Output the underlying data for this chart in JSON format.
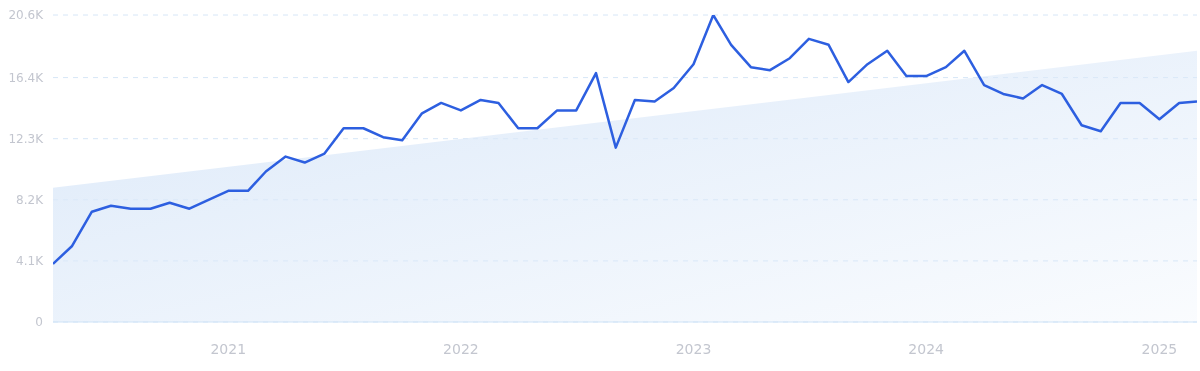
{
  "chart_data": {
    "type": "line",
    "x": [
      "2020-04",
      "2020-05",
      "2020-06",
      "2020-07",
      "2020-08",
      "2020-09",
      "2020-10",
      "2020-11",
      "2020-12",
      "2021-01",
      "2021-02",
      "2021-03",
      "2021-04",
      "2021-05",
      "2021-06",
      "2021-07",
      "2021-08",
      "2021-09",
      "2021-10",
      "2021-11",
      "2021-12",
      "2022-01",
      "2022-02",
      "2022-03",
      "2022-04",
      "2022-05",
      "2022-06",
      "2022-07",
      "2022-08",
      "2022-09",
      "2022-10",
      "2022-11",
      "2022-12",
      "2023-01",
      "2023-02",
      "2023-03",
      "2023-04",
      "2023-05",
      "2023-06",
      "2023-07",
      "2023-08",
      "2023-09",
      "2023-10",
      "2023-11",
      "2023-12",
      "2024-01",
      "2024-02",
      "2024-03",
      "2024-04",
      "2024-05",
      "2024-06",
      "2024-07",
      "2024-08",
      "2024-09",
      "2024-10",
      "2024-11",
      "2024-12",
      "2025-01",
      "2025-02",
      "2025-03"
    ],
    "series": [
      {
        "type": "area",
        "x": [
          "2020-04",
          "2025-03"
        ],
        "values": [
          9000,
          18200
        ],
        "color": "#dce9f9"
      },
      {
        "color": "#2d5fe0",
        "values": [
          3900,
          5100,
          7400,
          7800,
          7600,
          7600,
          8000,
          7600,
          8200,
          8800,
          8800,
          10100,
          11100,
          10700,
          11300,
          13000,
          13000,
          12400,
          12200,
          14000,
          14700,
          14200,
          14900,
          14700,
          13000,
          13000,
          14200,
          14200,
          16700,
          11700,
          14900,
          14800,
          15700,
          17300,
          20600,
          18600,
          17100,
          16900,
          17700,
          19000,
          18600,
          16100,
          17300,
          18200,
          16500,
          16500,
          17100,
          18200,
          15900,
          15300,
          15000,
          15900,
          15300,
          13200,
          12800,
          14700,
          14700,
          13600,
          14700,
          14800
        ]
      }
    ],
    "xlim": [
      "2020-04",
      "2025-03"
    ],
    "xticks": [
      {
        "value": "2021-01",
        "label": "2021"
      },
      {
        "value": "2022-01",
        "label": "2022"
      },
      {
        "value": "2023-01",
        "label": "2023"
      },
      {
        "value": "2024-01",
        "label": "2024"
      },
      {
        "value": "2025-01",
        "label": "2025"
      }
    ],
    "ylim": [
      0,
      20600
    ],
    "yticks": [
      0,
      {
        "value": 4100,
        "label": "4.1K"
      },
      {
        "value": 8200,
        "label": "8.2K"
      },
      {
        "value": 12300,
        "label": "12.3K"
      },
      {
        "value": 16400,
        "label": "16.4K"
      },
      {
        "value": 20600,
        "label": "20.6K"
      }
    ],
    "grid": "y",
    "legend": false,
    "marker": "none",
    "line_style": "solid"
  }
}
